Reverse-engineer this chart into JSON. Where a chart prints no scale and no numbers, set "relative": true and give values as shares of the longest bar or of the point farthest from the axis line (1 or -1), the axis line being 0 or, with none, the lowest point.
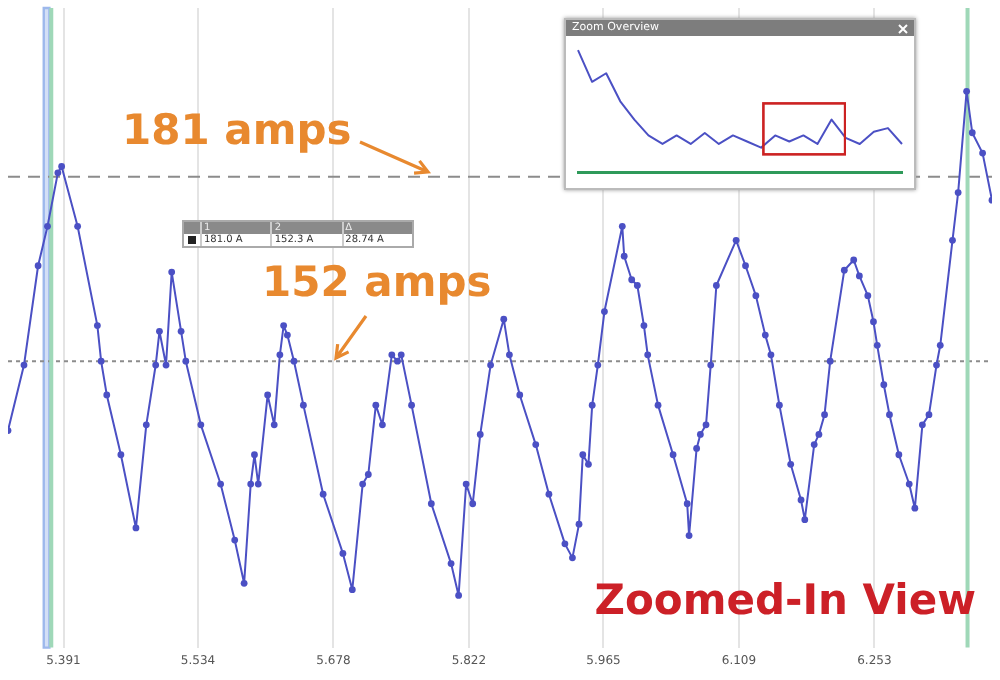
{
  "chart_data": [
    {
      "type": "line",
      "xlim": [
        5.332,
        6.378
      ],
      "xticks": [
        5.391,
        5.534,
        5.678,
        5.822,
        5.965,
        6.109,
        6.253
      ],
      "ylim": [
        107,
        207.5
      ],
      "tick_labels": "x",
      "grid": "x",
      "legend": false,
      "marker": "circle",
      "line_style": "solid",
      "series": [
        {
          "color": "#4b50c4",
          "x": [
            5.332,
            5.349,
            5.364,
            5.374,
            5.385,
            5.389,
            5.406,
            5.427,
            5.431,
            5.437,
            5.452,
            5.468,
            5.479,
            5.489,
            5.493,
            5.5,
            5.506,
            5.516,
            5.521,
            5.537,
            5.558,
            5.573,
            5.583,
            5.59,
            5.594,
            5.598,
            5.608,
            5.615,
            5.621,
            5.625,
            5.629,
            5.636,
            5.646,
            5.667,
            5.688,
            5.698,
            5.709,
            5.715,
            5.723,
            5.73,
            5.74,
            5.746,
            5.75,
            5.761,
            5.782,
            5.803,
            5.811,
            5.819,
            5.826,
            5.834,
            5.845,
            5.859,
            5.865,
            5.876,
            5.893,
            5.907,
            5.924,
            5.932,
            5.939,
            5.943,
            5.949,
            5.953,
            5.959,
            5.966,
            5.985,
            5.987,
            5.995,
            6.001,
            6.008,
            6.012,
            6.023,
            6.039,
            6.054,
            6.056,
            6.064,
            6.068,
            6.074,
            6.079,
            6.085,
            6.106,
            6.116,
            6.127,
            6.137,
            6.143,
            6.152,
            6.164,
            6.175,
            6.179,
            6.189,
            6.194,
            6.2,
            6.206,
            6.221,
            6.231,
            6.237,
            6.246,
            6.252,
            6.256,
            6.263,
            6.269,
            6.279,
            6.29,
            6.296,
            6.304,
            6.311,
            6.319,
            6.323,
            6.336,
            6.342,
            6.351,
            6.357,
            6.368,
            6.378
          ],
          "values": [
            141.1,
            151.4,
            167,
            173.2,
            181.6,
            182.6,
            173.2,
            157.6,
            152,
            146.7,
            137.3,
            125.8,
            142,
            151.4,
            156.7,
            151.4,
            166,
            156.7,
            152,
            142,
            132.7,
            123.9,
            117.1,
            132.7,
            137.3,
            132.7,
            146.7,
            142,
            153,
            157.6,
            156.1,
            152,
            145.1,
            131.1,
            121.8,
            116.1,
            132.7,
            134.2,
            145.1,
            142,
            153,
            152,
            153,
            145.1,
            129.6,
            120.2,
            115.2,
            132.7,
            129.6,
            140.5,
            151.4,
            158.6,
            153,
            146.7,
            138.9,
            131.1,
            123.3,
            121.1,
            126.4,
            137.3,
            135.8,
            145.1,
            151.4,
            159.8,
            173.2,
            168.5,
            164.8,
            163.9,
            157.6,
            153,
            145.1,
            137.3,
            129.6,
            124.6,
            138.3,
            140.5,
            142,
            151.4,
            163.9,
            171,
            167,
            162.3,
            156.1,
            153,
            145.1,
            135.8,
            130.2,
            127.1,
            138.9,
            140.5,
            143.6,
            152,
            166.3,
            167.9,
            165.4,
            162.3,
            158.2,
            154.5,
            148.3,
            143.6,
            137.3,
            132.7,
            128.9,
            142,
            143.6,
            151.4,
            154.5,
            171,
            178.5,
            194.4,
            187.9,
            184.7,
            177.3
          ]
        }
      ],
      "ref_lines": [
        {
          "axis": "y",
          "value": 181,
          "label": "181 amps",
          "color": "#8c8c8c",
          "line_style": "dashed"
        },
        {
          "axis": "y",
          "value": 152,
          "label": "152 amps",
          "color": "#8c8c8c",
          "line_style": "dotted"
        },
        {
          "axis": "x",
          "value": 5.378,
          "color": "#9fd8b8"
        },
        {
          "axis": "x",
          "value": 6.352,
          "color": "#9fd8b8"
        }
      ],
      "bands": [
        {
          "axis": "x",
          "from": 5.37,
          "to": 5.376,
          "color": "#9db8ec"
        }
      ],
      "annotations": [
        "Zoomed-In View",
        "1",
        "2",
        "Δ",
        "181.0 A",
        "152.3 A",
        "28.74 A"
      ]
    },
    {
      "type": "line",
      "title": "Zoom Overview",
      "relative": true,
      "tick_labels": false,
      "legend": false,
      "marker": "none",
      "line_style": "solid",
      "categories": [
        null,
        null,
        null,
        null,
        null,
        null,
        null,
        null,
        null,
        null,
        null,
        null,
        null,
        null,
        null,
        null,
        null,
        null,
        null,
        null,
        null,
        null,
        null,
        null
      ],
      "series": [
        {
          "color": "#4b50c4",
          "values": [
            1,
            0.74,
            0.81,
            0.58,
            0.43,
            0.3,
            0.23,
            0.3,
            0.23,
            0.32,
            0.23,
            0.3,
            0.25,
            0.2,
            0.3,
            0.25,
            0.3,
            0.23,
            0.43,
            0.28,
            0.23,
            0.33,
            0.36,
            0.23
          ]
        }
      ]
    }
  ]
}
